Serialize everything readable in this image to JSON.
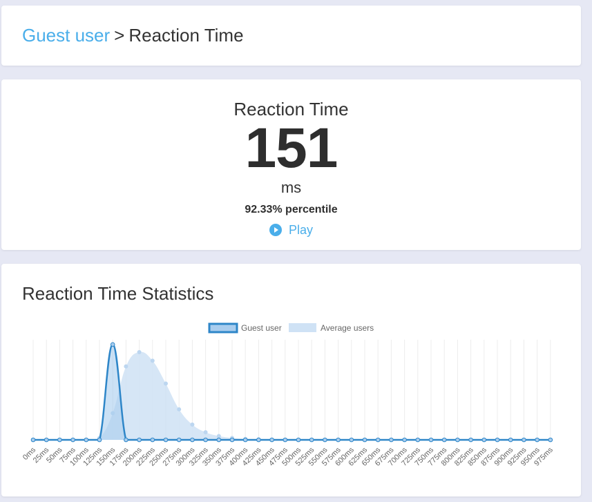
{
  "breadcrumb": {
    "parent": "Guest user",
    "separator": ">",
    "current": "Reaction Time"
  },
  "result": {
    "title": "Reaction Time",
    "value": "151",
    "unit": "ms",
    "percentile": "92.33% percentile",
    "play_label": "Play"
  },
  "stats": {
    "title": "Reaction Time Statistics"
  },
  "colors": {
    "accent": "#4aaeea",
    "guest_line": "#2e86c8",
    "average_fill": "#cfe2f5"
  },
  "chart_data": {
    "type": "area",
    "legend": [
      "Guest user",
      "Average users"
    ],
    "legend_placement": "top-center",
    "categories": [
      "0ms",
      "25ms",
      "50ms",
      "75ms",
      "100ms",
      "125ms",
      "150ms",
      "175ms",
      "200ms",
      "225ms",
      "250ms",
      "275ms",
      "300ms",
      "325ms",
      "350ms",
      "375ms",
      "400ms",
      "425ms",
      "450ms",
      "475ms",
      "500ms",
      "525ms",
      "550ms",
      "575ms",
      "600ms",
      "625ms",
      "650ms",
      "675ms",
      "700ms",
      "725ms",
      "750ms",
      "775ms",
      "800ms",
      "825ms",
      "850ms",
      "875ms",
      "900ms",
      "925ms",
      "950ms",
      "975ms"
    ],
    "series": [
      {
        "name": "Guest user",
        "values": [
          0,
          0,
          0,
          0,
          0,
          0,
          100,
          0,
          0,
          0,
          0,
          0,
          0,
          0,
          0,
          0,
          0,
          0,
          0,
          0,
          0,
          0,
          0,
          0,
          0,
          0,
          0,
          0,
          0,
          0,
          0,
          0,
          0,
          0,
          0,
          0,
          0,
          0,
          0,
          0
        ]
      },
      {
        "name": "Average users",
        "values": [
          0,
          0,
          0,
          0,
          0,
          2,
          28,
          77,
          92,
          83,
          59,
          32,
          16,
          8,
          4,
          2,
          1,
          0.5,
          0.2,
          0,
          0,
          0,
          0,
          0,
          0,
          0,
          0,
          0,
          0,
          0,
          0,
          0,
          0,
          0,
          0,
          0,
          0,
          0,
          0,
          0
        ]
      }
    ],
    "ylim": [
      0,
      105
    ],
    "grid": true
  }
}
